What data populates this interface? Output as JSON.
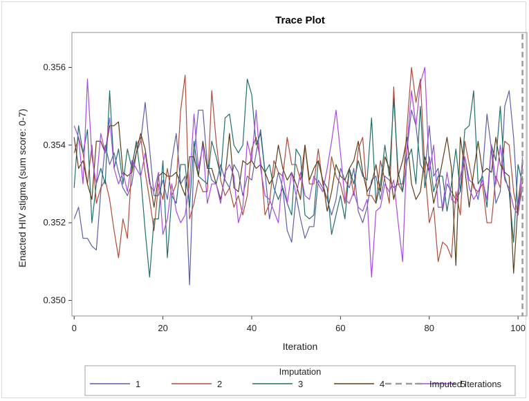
{
  "chart_data": {
    "type": "line",
    "title": "Trace Plot",
    "xlabel": "Iteration",
    "ylabel": "Enacted HIV stigma (sum score: 0-7)",
    "xlim": [
      -0.5,
      102
    ],
    "ylim": [
      0.3496,
      0.3569
    ],
    "x_ticks": [
      0,
      20,
      40,
      60,
      80,
      100
    ],
    "x_tick_labels": [
      "0",
      "20",
      "40",
      "60",
      "80",
      "100"
    ],
    "y_ticks": [
      0.35,
      0.352,
      0.354,
      0.356
    ],
    "y_tick_labels": [
      "0.350",
      "0.352",
      "0.354",
      "0.356"
    ],
    "imputed_iteration": 101,
    "legend": {
      "title": "Imputation",
      "placement": "bottom",
      "entries": [
        "1",
        "2",
        "3",
        "4",
        "5",
        "Imputed Iterations"
      ]
    },
    "series": [
      {
        "name": "1",
        "color": "#5a5fa8",
        "values": [
          0.3521,
          0.3524,
          0.3516,
          0.3516,
          0.3514,
          0.3513,
          0.3528,
          0.354,
          0.3535,
          0.3538,
          0.3533,
          0.3529,
          0.3527,
          0.353,
          0.3538,
          0.3541,
          0.3551,
          0.3539,
          0.3527,
          0.3527,
          0.3531,
          0.3526,
          0.3536,
          0.3543,
          0.353,
          0.3532,
          0.3504,
          0.3537,
          0.3549,
          0.3549,
          0.3535,
          0.3531,
          0.353,
          0.3535,
          0.3531,
          0.3529,
          0.3535,
          0.3533,
          0.3527,
          0.3532,
          0.3531,
          0.3538,
          0.3544,
          0.3533,
          0.3521,
          0.3527,
          0.3533,
          0.3529,
          0.3518,
          0.3515,
          0.3527,
          0.3521,
          0.3516,
          0.3519,
          0.3519,
          0.3531,
          0.3529,
          0.3526,
          0.3522,
          0.3526,
          0.3534,
          0.3531,
          0.3529,
          0.3534,
          0.3523,
          0.352,
          0.3524,
          0.3531,
          0.3532,
          0.3526,
          0.3532,
          0.3531,
          0.3529,
          0.353,
          0.353,
          0.3539,
          0.3549,
          0.3545,
          0.3535,
          0.3533,
          0.3545,
          0.3532,
          0.3534,
          0.3523,
          0.353,
          0.3528,
          0.3526,
          0.3528,
          0.3537,
          0.3531,
          0.353,
          0.3526,
          0.3533,
          0.3548,
          0.3539,
          0.3525,
          0.3528,
          0.355,
          0.3554,
          0.3542,
          0.3523,
          0.3529
        ]
      },
      {
        "name": "2",
        "color": "#b04a3a",
        "values": [
          0.3538,
          0.3542,
          0.3538,
          0.353,
          0.354,
          0.3525,
          0.3529,
          0.3531,
          0.3526,
          0.3518,
          0.3511,
          0.3521,
          0.3516,
          0.3535,
          0.354,
          0.3542,
          0.3533,
          0.3526,
          0.3518,
          0.353,
          0.3526,
          0.3534,
          0.3527,
          0.353,
          0.3549,
          0.3558,
          0.3521,
          0.3525,
          0.3531,
          0.3528,
          0.3528,
          0.3554,
          0.3541,
          0.3531,
          0.3527,
          0.3529,
          0.3524,
          0.3527,
          0.3522,
          0.3527,
          0.3539,
          0.3542,
          0.3536,
          0.3522,
          0.3525,
          0.3536,
          0.3533,
          0.3532,
          0.3542,
          0.3535,
          0.3535,
          0.3531,
          0.354,
          0.353,
          0.353,
          0.3539,
          0.353,
          0.3526,
          0.3537,
          0.3532,
          0.353,
          0.3525,
          0.3534,
          0.3527,
          0.3539,
          0.3542,
          0.3527,
          0.3527,
          0.3525,
          0.3536,
          0.3531,
          0.3525,
          0.3555,
          0.353,
          0.3528,
          0.3545,
          0.356,
          0.3551,
          0.3557,
          0.3534,
          0.352,
          0.3524,
          0.351,
          0.3515,
          0.3514,
          0.3511,
          0.3528,
          0.3522,
          0.3541,
          0.3535,
          0.3529,
          0.3528,
          0.353,
          0.352,
          0.352,
          0.3532,
          0.3529,
          0.3541,
          0.354,
          0.3528,
          0.3522,
          0.3532
        ]
      },
      {
        "name": "3",
        "color": "#1e6e6a",
        "values": [
          0.3529,
          0.3545,
          0.3538,
          0.3544,
          0.352,
          0.353,
          0.3534,
          0.353,
          0.3554,
          0.3534,
          0.3539,
          0.353,
          0.3539,
          0.3534,
          0.3541,
          0.3532,
          0.3518,
          0.3506,
          0.3521,
          0.3521,
          0.3536,
          0.3511,
          0.3527,
          0.3525,
          0.3535,
          0.3535,
          0.3524,
          0.3541,
          0.3532,
          0.3531,
          0.353,
          0.3541,
          0.3537,
          0.3532,
          0.3547,
          0.3548,
          0.354,
          0.3538,
          0.354,
          0.3557,
          0.3553,
          0.354,
          0.3543,
          0.3533,
          0.3535,
          0.3529,
          0.3526,
          0.3529,
          0.3525,
          0.3522,
          0.3539,
          0.3537,
          0.3522,
          0.3521,
          0.3522,
          0.3536,
          0.3531,
          0.3529,
          0.3517,
          0.3522,
          0.3527,
          0.3521,
          0.3534,
          0.353,
          0.3536,
          0.3532,
          0.3531,
          0.3547,
          0.3525,
          0.353,
          0.354,
          0.3532,
          0.3552,
          0.3533,
          0.3528,
          0.3536,
          0.3539,
          0.353,
          0.355,
          0.3529,
          0.3537,
          0.3528,
          0.3532,
          0.3532,
          0.3523,
          0.353,
          0.3539,
          0.3528,
          0.3544,
          0.3545,
          0.3554,
          0.353,
          0.3532,
          0.3524,
          0.354,
          0.3536,
          0.355,
          0.3532,
          0.3528,
          0.3515,
          0.3535,
          0.353
        ]
      },
      {
        "name": "4",
        "color": "#5a3d16",
        "values": [
          0.3542,
          0.3534,
          0.3536,
          0.353,
          0.3526,
          0.3541,
          0.3541,
          0.3538,
          0.3545,
          0.3545,
          0.3546,
          0.3533,
          0.3532,
          0.3533,
          0.3538,
          0.3543,
          0.3539,
          0.3531,
          0.3524,
          0.3532,
          0.3533,
          0.3532,
          0.3532,
          0.3533,
          0.353,
          0.3527,
          0.3537,
          0.3537,
          0.3532,
          0.3541,
          0.3534,
          0.3534,
          0.353,
          0.3526,
          0.3532,
          0.3543,
          0.3529,
          0.3528,
          0.3536,
          0.3535,
          0.3536,
          0.3534,
          0.3535,
          0.3533,
          0.353,
          0.3532,
          0.354,
          0.3534,
          0.3531,
          0.3533,
          0.353,
          0.3526,
          0.354,
          0.3531,
          0.3534,
          0.3536,
          0.3531,
          0.3523,
          0.3528,
          0.3535,
          0.3532,
          0.3531,
          0.3534,
          0.3536,
          0.3541,
          0.3533,
          0.3528,
          0.353,
          0.3535,
          0.3528,
          0.3537,
          0.3534,
          0.3526,
          0.3532,
          0.3536,
          0.3542,
          0.353,
          0.3526,
          0.3528,
          0.3537,
          0.3533,
          0.3525,
          0.353,
          0.3536,
          0.3542,
          0.3534,
          0.3509,
          0.3542,
          0.3534,
          0.3524,
          0.3533,
          0.3541,
          0.3533,
          0.3534,
          0.3533,
          0.3542,
          0.3535,
          0.3533,
          0.3532,
          0.3507,
          0.3525,
          0.3535
        ]
      },
      {
        "name": "5",
        "color": "#a64be0",
        "values": [
          0.3545,
          0.3542,
          0.353,
          0.3557,
          0.3537,
          0.353,
          0.3543,
          0.3538,
          0.3547,
          0.3534,
          0.353,
          0.3533,
          0.3528,
          0.3536,
          0.3534,
          0.3532,
          0.3538,
          0.353,
          0.3528,
          0.3533,
          0.3517,
          0.3521,
          0.353,
          0.3523,
          0.352,
          0.3522,
          0.353,
          0.3548,
          0.3534,
          0.354,
          0.3525,
          0.353,
          0.353,
          0.3525,
          0.3533,
          0.3535,
          0.3532,
          0.352,
          0.3524,
          0.3541,
          0.3536,
          0.3549,
          0.3534,
          0.3527,
          0.3526,
          0.3523,
          0.352,
          0.3533,
          0.3525,
          0.3533,
          0.3527,
          0.3533,
          0.3527,
          0.3526,
          0.3532,
          0.353,
          0.3528,
          0.3534,
          0.3541,
          0.3549,
          0.3538,
          0.3526,
          0.3525,
          0.3528,
          0.3524,
          0.3523,
          0.3526,
          0.3506,
          0.3523,
          0.3524,
          0.353,
          0.3528,
          0.3531,
          0.352,
          0.351,
          0.354,
          0.3554,
          0.3545,
          0.3556,
          0.356,
          0.3533,
          0.354,
          0.3524,
          0.3524,
          0.3533,
          0.3526,
          0.3525,
          0.3532,
          0.3537,
          0.3529,
          0.3526,
          0.3528,
          0.3531,
          0.3526,
          0.354,
          0.353,
          0.354,
          0.3531,
          0.3529,
          0.3524,
          0.3522,
          0.3537
        ]
      }
    ]
  },
  "style": {
    "plot_border_color": "#8c8c8c",
    "imputed_line_color": "#9a9a9a",
    "legend_border_color": "#a0a0a0"
  }
}
